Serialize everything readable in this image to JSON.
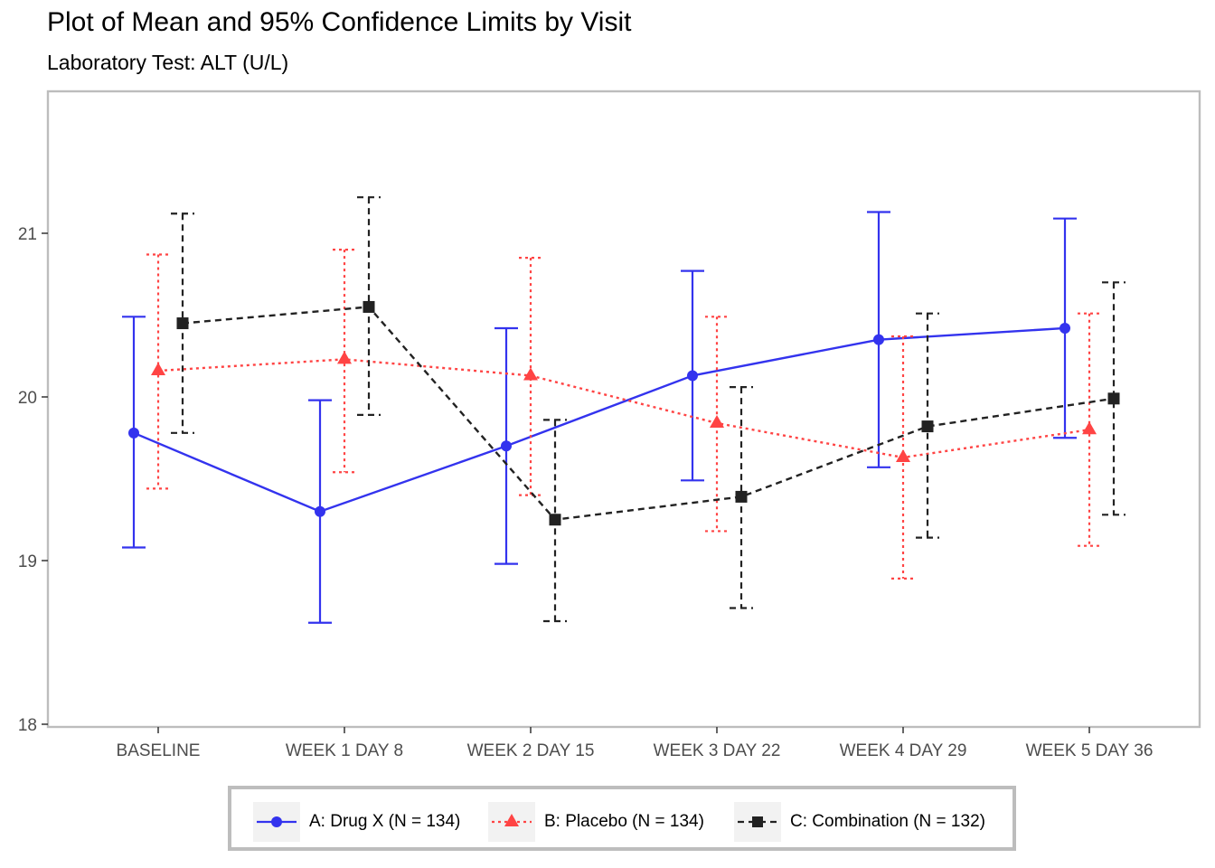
{
  "title": "Plot of Mean and 95% Confidence Limits by Visit",
  "subtitle": "Laboratory Test: ALT (U/L)",
  "colors": {
    "drug_x": "#3333ee",
    "placebo": "#ff4444",
    "combination": "#222222",
    "panel_border": "#bdbdbd",
    "axis_text": "#4d4d4d"
  },
  "legend": {
    "items": [
      {
        "label": "A: Drug X (N = 134)",
        "marker": "circle",
        "line": "solid",
        "color": "#3333ee"
      },
      {
        "label": "B: Placebo (N = 134)",
        "marker": "triangle",
        "line": "dotted",
        "color": "#ff4444"
      },
      {
        "label": "C: Combination (N = 132)",
        "marker": "square",
        "line": "dashed",
        "color": "#222222"
      }
    ]
  },
  "chart_data": {
    "type": "line",
    "title": "Plot of Mean and 95% Confidence Limits by Visit",
    "subtitle": "Laboratory Test: ALT (U/L)",
    "xlabel": "",
    "ylabel": "",
    "categories": [
      "BASELINE",
      "WEEK 1 DAY 8",
      "WEEK 2 DAY 15",
      "WEEK 3 DAY 22",
      "WEEK 4 DAY 29",
      "WEEK 5 DAY 36"
    ],
    "ylim": [
      18,
      21.9
    ],
    "yticks": [
      18,
      19,
      20,
      21
    ],
    "grid": false,
    "legend_position": "bottom",
    "series": [
      {
        "name": "A: Drug X (N = 134)",
        "color": "#3333ee",
        "linetype": "solid",
        "marker": "circle",
        "mean": [
          19.78,
          19.3,
          19.7,
          20.13,
          20.35,
          20.42
        ],
        "lower": [
          19.08,
          18.62,
          18.98,
          19.49,
          19.57,
          19.75
        ],
        "upper": [
          20.49,
          19.98,
          20.42,
          20.77,
          21.13,
          21.09
        ]
      },
      {
        "name": "B: Placebo (N = 134)",
        "color": "#ff4444",
        "linetype": "dotted",
        "marker": "triangle",
        "mean": [
          20.16,
          20.23,
          20.13,
          19.84,
          19.63,
          19.8
        ],
        "lower": [
          19.44,
          19.54,
          19.4,
          19.18,
          18.89,
          19.09
        ],
        "upper": [
          20.87,
          20.9,
          20.85,
          20.49,
          20.37,
          20.51
        ]
      },
      {
        "name": "C: Combination (N = 132)",
        "color": "#222222",
        "linetype": "dashed",
        "marker": "square",
        "mean": [
          20.45,
          20.55,
          19.25,
          19.39,
          19.82,
          19.99
        ],
        "lower": [
          19.78,
          19.89,
          18.63,
          18.71,
          19.14,
          19.28
        ],
        "upper": [
          21.12,
          21.22,
          19.86,
          20.06,
          20.51,
          20.7
        ]
      }
    ]
  }
}
